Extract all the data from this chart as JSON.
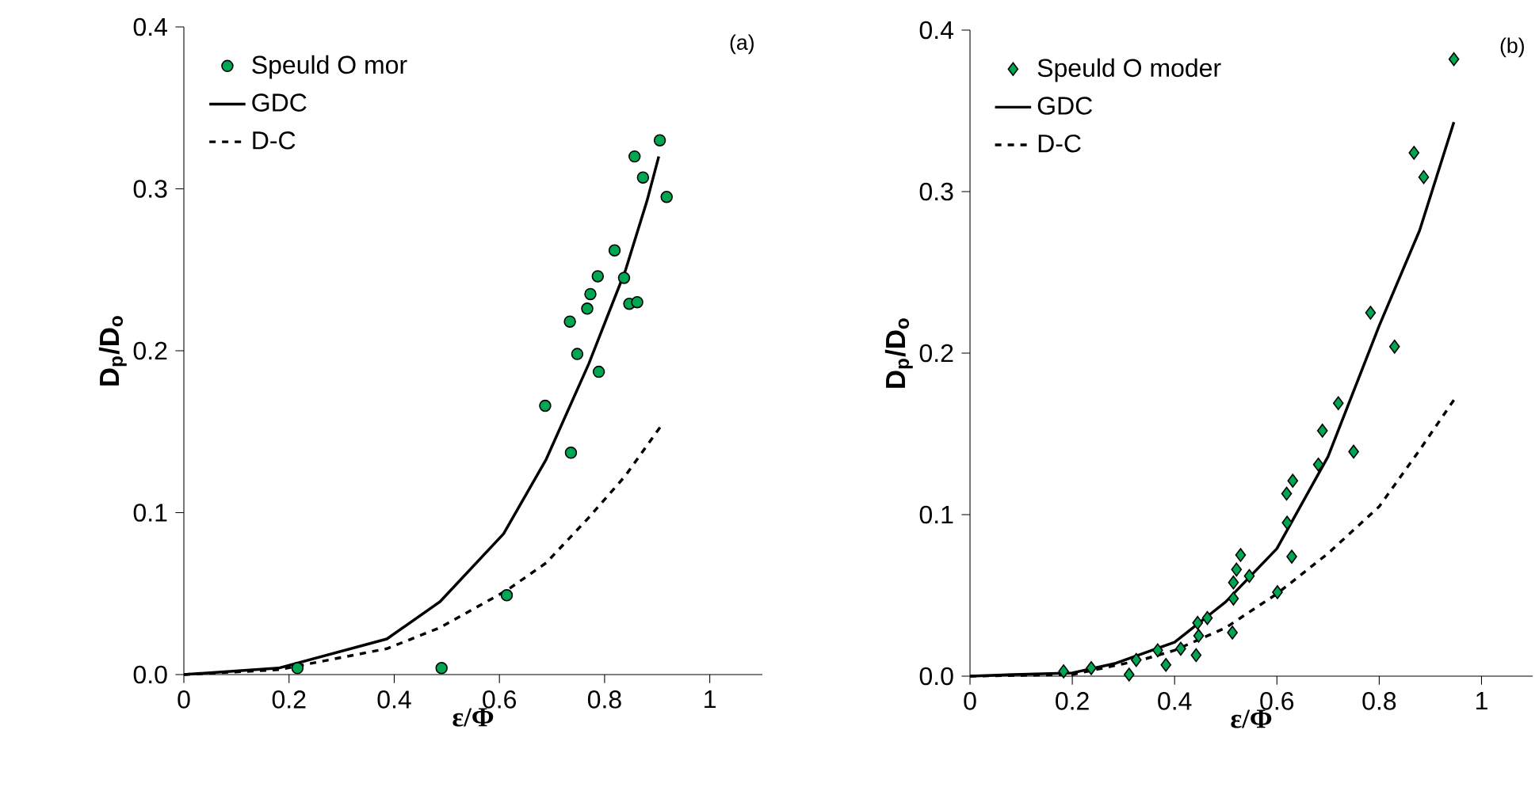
{
  "chart_data": [
    {
      "type": "scatter",
      "xlabel": "ε/Φ",
      "ylabel": "D$_{p}$/D$_{o}$",
      "xlim": [
        0,
        1.1
      ],
      "ylim": [
        0,
        0.4
      ],
      "xticks": [
        0,
        0.2,
        0.4,
        0.6,
        0.8,
        1
      ],
      "yticks": [
        {
          "value": 0,
          "label": "0.0"
        },
        0.1,
        0.2,
        0.3,
        0.4
      ],
      "legend": "top left",
      "annotations": [
        "(a)"
      ],
      "series": [
        {
          "name": "Speuld O mor",
          "type": "scatter",
          "marker": "circle",
          "color": "#00a651",
          "x": [
            0.216,
            0.49,
            0.614,
            0.687,
            0.736,
            0.734,
            0.748,
            0.767,
            0.773,
            0.787,
            0.789,
            0.819,
            0.837,
            0.847,
            0.862,
            0.857,
            0.873,
            0.905,
            0.918
          ],
          "values": [
            0.004,
            0.004,
            0.049,
            0.166,
            0.137,
            0.218,
            0.198,
            0.226,
            0.235,
            0.246,
            0.187,
            0.262,
            0.245,
            0.229,
            0.23,
            0.32,
            0.307,
            0.33,
            0.295
          ]
        },
        {
          "name": "GDC",
          "type": "line",
          "line_style": "solid",
          "color": "#000000",
          "x": [
            0,
            0.18,
            0.386,
            0.487,
            0.608,
            0.689,
            0.77,
            0.84,
            0.881,
            0.903
          ],
          "values": [
            0,
            0.004,
            0.022,
            0.045,
            0.087,
            0.133,
            0.192,
            0.25,
            0.293,
            0.32
          ]
        },
        {
          "name": "D-C",
          "type": "line",
          "line_style": "dashed",
          "color": "#000000",
          "x": [
            0,
            0.18,
            0.386,
            0.487,
            0.614,
            0.689,
            0.77,
            0.84,
            0.906
          ],
          "values": [
            0,
            0.003,
            0.016,
            0.029,
            0.052,
            0.069,
            0.097,
            0.123,
            0.153
          ]
        }
      ]
    },
    {
      "type": "scatter",
      "xlabel": "ε/Φ",
      "ylabel": "D$_{p}$/D$_{o}$",
      "xlim": [
        0,
        1.1
      ],
      "ylim": [
        0,
        0.4
      ],
      "xticks": [
        0,
        0.2,
        0.4,
        0.6,
        0.8,
        1
      ],
      "yticks": [
        {
          "value": 0,
          "label": "0.0"
        },
        0.1,
        0.2,
        0.3,
        0.4
      ],
      "legend": "top left",
      "annotations": [
        "(b)"
      ],
      "series": [
        {
          "name": "Speuld O moder",
          "type": "scatter",
          "marker": "diamond",
          "color": "#00a651",
          "x": [
            0.183,
            0.237,
            0.311,
            0.325,
            0.367,
            0.383,
            0.412,
            0.442,
            0.445,
            0.447,
            0.464,
            0.513,
            0.515,
            0.515,
            0.521,
            0.529,
            0.546,
            0.601,
            0.62,
            0.619,
            0.631,
            0.629,
            0.681,
            0.689,
            0.72,
            0.75,
            0.783,
            0.83,
            0.868,
            0.887,
            0.946
          ],
          "values": [
            0.003,
            0.005,
            0.001,
            0.01,
            0.016,
            0.007,
            0.017,
            0.013,
            0.033,
            0.025,
            0.036,
            0.027,
            0.048,
            0.058,
            0.066,
            0.075,
            0.062,
            0.052,
            0.095,
            0.113,
            0.121,
            0.074,
            0.131,
            0.152,
            0.169,
            0.139,
            0.225,
            0.204,
            0.324,
            0.309,
            0.382
          ]
        },
        {
          "name": "GDC",
          "type": "line",
          "line_style": "solid",
          "color": "#000000",
          "x": [
            0,
            0.085,
            0.2,
            0.285,
            0.4,
            0.5,
            0.6,
            0.7,
            0.8,
            0.879,
            0.946
          ],
          "values": [
            0,
            0.001,
            0.002,
            0.008,
            0.021,
            0.046,
            0.079,
            0.136,
            0.217,
            0.276,
            0.343
          ]
        },
        {
          "name": "D-C",
          "type": "line",
          "line_style": "dashed",
          "color": "#000000",
          "x": [
            0,
            0.2,
            0.335,
            0.4,
            0.5,
            0.6,
            0.7,
            0.8,
            0.879,
            0.946
          ],
          "values": [
            0,
            0.001,
            0.01,
            0.016,
            0.03,
            0.051,
            0.076,
            0.105,
            0.14,
            0.171
          ]
        }
      ]
    }
  ]
}
